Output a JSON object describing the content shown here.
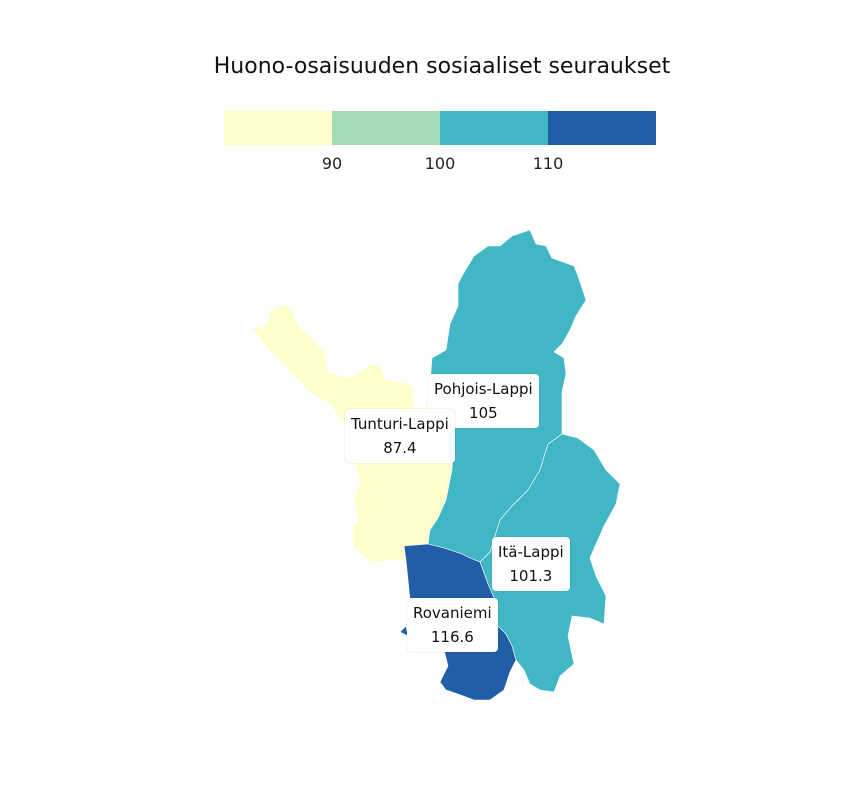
{
  "title": "Huono-osaisuuden sosiaaliset seuraukset",
  "legend": {
    "bins": [
      {
        "color": "#ffffcc"
      },
      {
        "color": "#a1dab4"
      },
      {
        "color": "#41b6c4"
      },
      {
        "color": "#225ea8"
      }
    ],
    "ticks": [
      "90",
      "100",
      "110"
    ]
  },
  "regions": [
    {
      "name": "Pohjois-Lappi",
      "value": "105",
      "color": "#41b6c4"
    },
    {
      "name": "Tunturi-Lappi",
      "value": "87.4",
      "color": "#ffffcc"
    },
    {
      "name": "Itä-Lappi",
      "value": "101.3",
      "color": "#41b6c4"
    },
    {
      "name": "Rovaniemi",
      "value": "116.6",
      "color": "#225ea8"
    }
  ]
}
